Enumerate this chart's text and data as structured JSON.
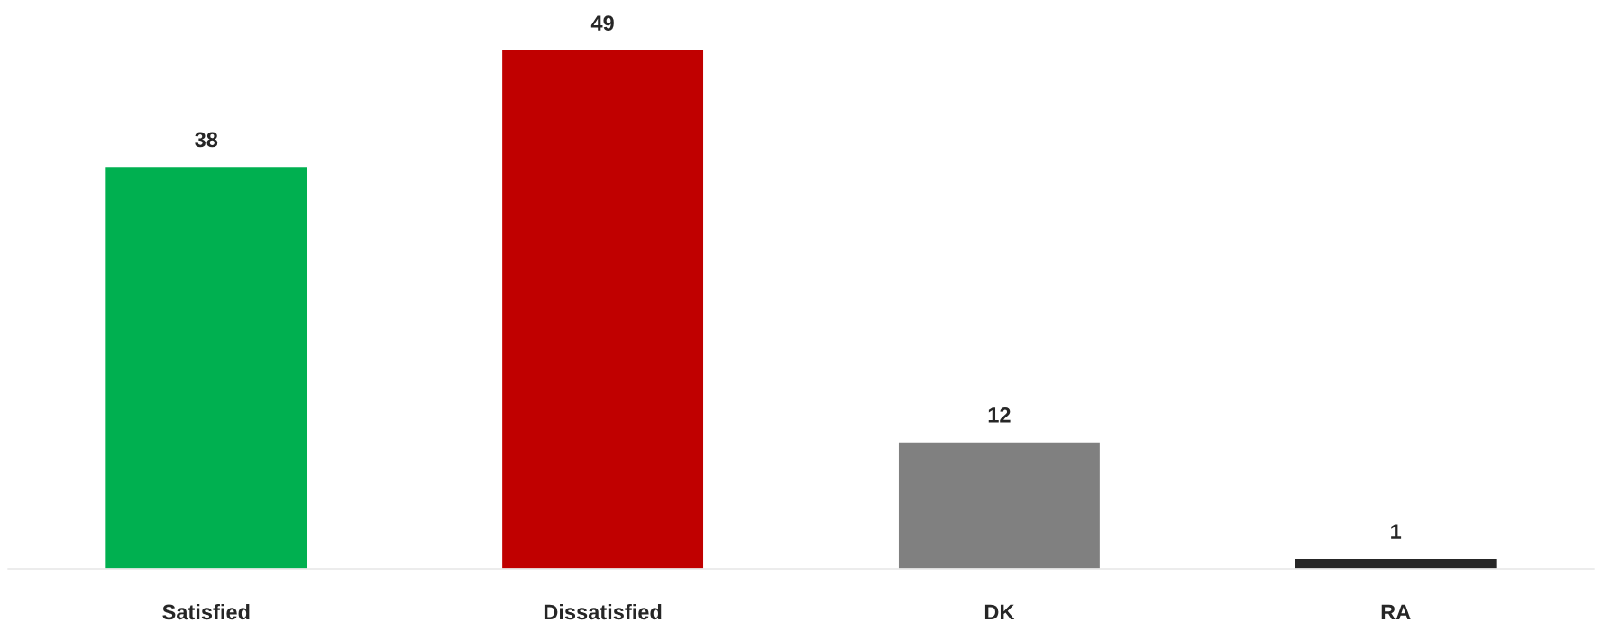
{
  "chart_data": {
    "type": "bar",
    "categories": [
      "Satisfied",
      "Dissatisfied",
      "DK",
      "RA"
    ],
    "values": [
      38,
      49,
      12,
      1
    ],
    "colors": [
      "#00b050",
      "#c00000",
      "#808080",
      "#262626"
    ],
    "data_labels": true
  }
}
